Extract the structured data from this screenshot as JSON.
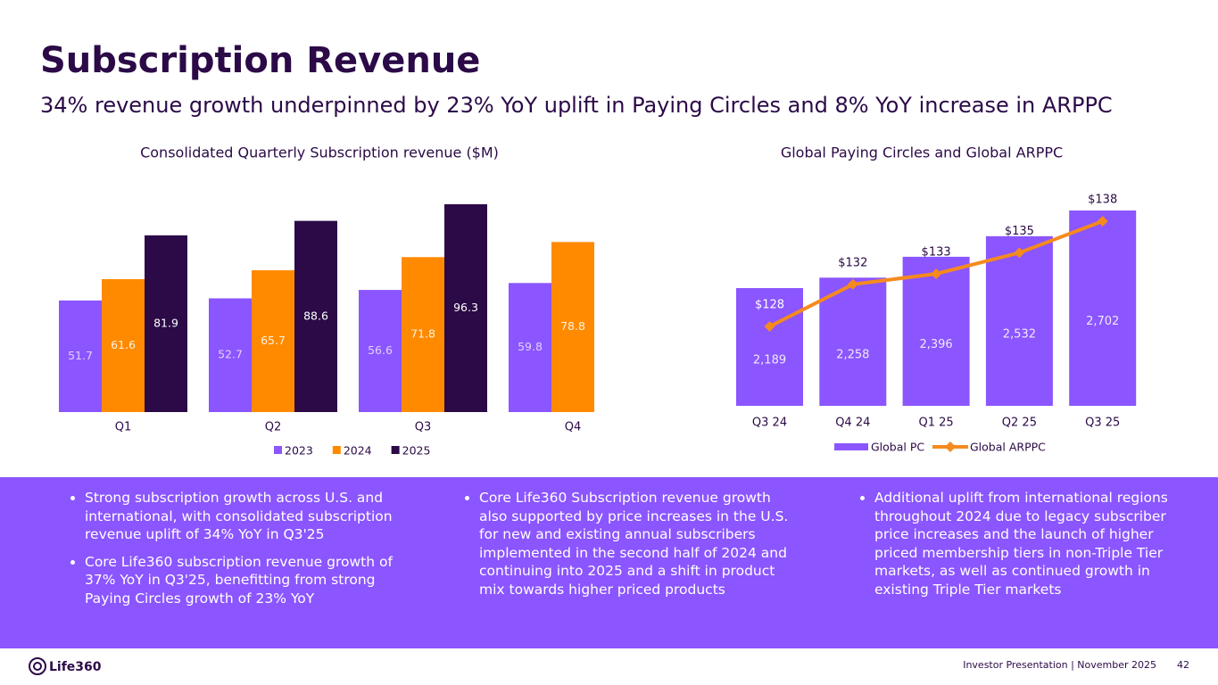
{
  "title": "Subscription Revenue",
  "subtitle": "34% revenue growth underpinned by 23% YoY uplift in Paying Circles and 8% YoY increase in ARPPC",
  "chart_data": [
    {
      "type": "bar",
      "title": "Consolidated Quarterly Subscription revenue ($M)",
      "categories": [
        "Q1",
        "Q2",
        "Q3",
        "Q4"
      ],
      "series": [
        {
          "name": "2023",
          "color": "#8b55ff",
          "values": [
            51.7,
            52.7,
            56.6,
            59.8
          ]
        },
        {
          "name": "2024",
          "color": "#ff8a00",
          "values": [
            61.6,
            65.7,
            71.8,
            78.8
          ]
        },
        {
          "name": "2025",
          "color": "#2b0a47",
          "values": [
            81.9,
            88.6,
            96.3,
            null
          ]
        }
      ]
    },
    {
      "type": "combo",
      "title": "Global Paying Circles and Global ARPPC",
      "categories": [
        "Q3 24",
        "Q4 24",
        "Q1 25",
        "Q2 25",
        "Q3 25"
      ],
      "series": [
        {
          "name": "Global PC",
          "type": "bar",
          "color": "#8b55ff",
          "values": [
            2189,
            2258,
            2396,
            2532,
            2702
          ],
          "value_labels": [
            "2,189",
            "2,258",
            "2,396",
            "2,532",
            "2,702"
          ]
        },
        {
          "name": "Global ARPPC",
          "type": "line",
          "axis": "y2",
          "color": "#f58a1f",
          "values": [
            128,
            132,
            133,
            135,
            138
          ],
          "value_labels": [
            "$128",
            "$132",
            "$133",
            "$135",
            "$138"
          ]
        }
      ]
    }
  ],
  "bullets": [
    [
      "Strong subscription growth across U.S. and international, with consolidated subscription revenue uplift of 34% YoY in Q3'25",
      "Core Life360 subscription revenue growth of 37% YoY in Q3'25, benefitting from strong Paying Circles growth of 23% YoY"
    ],
    [
      "Core Life360 Subscription revenue growth also supported by price increases in the U.S. for new and existing annual subscribers implemented in the second half of 2024 and continuing into 2025 and a shift in product mix towards higher priced products"
    ],
    [
      "Additional uplift from international regions throughout 2024 due to legacy subscriber price increases and the launch of higher priced membership tiers in non-Triple Tier markets, as well as continued growth in existing Triple Tier markets"
    ]
  ],
  "footer": {
    "logo": "Life360",
    "text": "Investor Presentation  | November 2025",
    "page": "42"
  }
}
